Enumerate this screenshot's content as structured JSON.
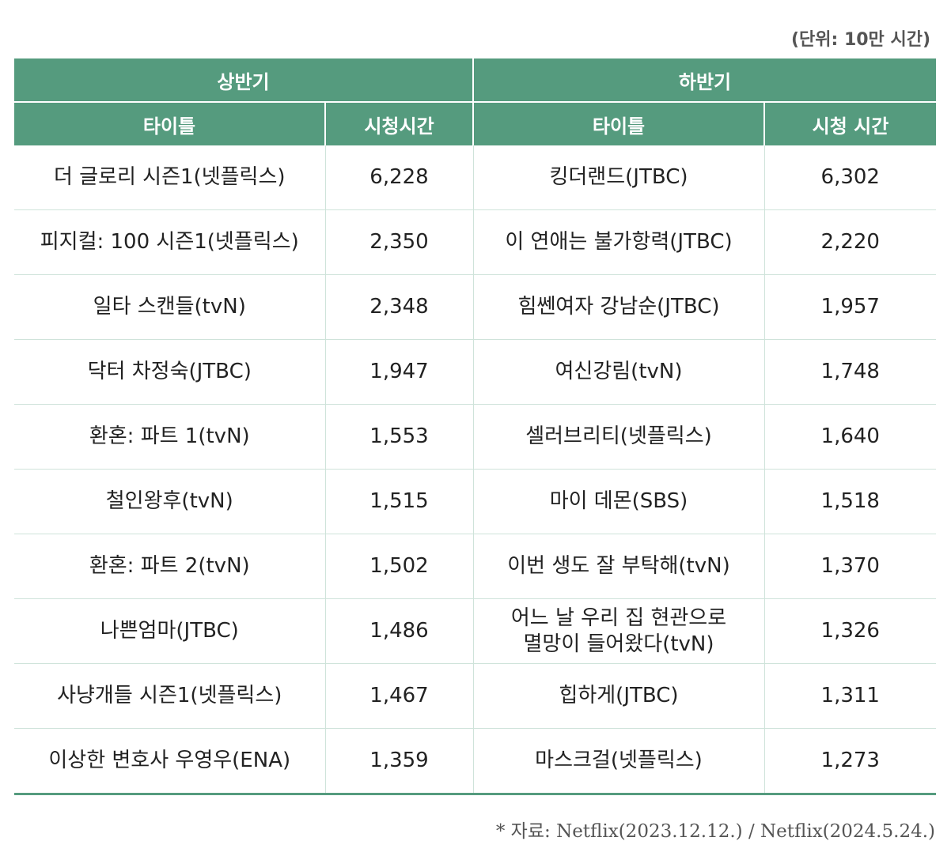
{
  "unit_note": "(단위: 10만 시간)",
  "headers": {
    "first_half": "상반기",
    "second_half": "하반기",
    "title_col_1": "타이틀",
    "hours_col_1": "시청시간",
    "title_col_2": "타이틀",
    "hours_col_2": "시청 시간"
  },
  "rows": [
    {
      "h1_title": "더 글로리 시즌1(넷플릭스)",
      "h1_hours": "6,228",
      "h2_title": "킹더랜드(JTBC)",
      "h2_hours": "6,302"
    },
    {
      "h1_title": "피지컬: 100 시즌1(넷플릭스)",
      "h1_hours": "2,350",
      "h2_title": "이 연애는 불가항력(JTBC)",
      "h2_hours": "2,220"
    },
    {
      "h1_title": "일타 스캔들(tvN)",
      "h1_hours": "2,348",
      "h2_title": "힘쎈여자 강남순(JTBC)",
      "h2_hours": "1,957"
    },
    {
      "h1_title": "닥터 차정숙(JTBC)",
      "h1_hours": "1,947",
      "h2_title": "여신강림(tvN)",
      "h2_hours": "1,748"
    },
    {
      "h1_title": "환혼: 파트 1(tvN)",
      "h1_hours": "1,553",
      "h2_title": "셀러브리티(넷플릭스)",
      "h2_hours": "1,640"
    },
    {
      "h1_title": "철인왕후(tvN)",
      "h1_hours": "1,515",
      "h2_title": "마이 데몬(SBS)",
      "h2_hours": "1,518"
    },
    {
      "h1_title": "환혼: 파트 2(tvN)",
      "h1_hours": "1,502",
      "h2_title": "이번 생도 잘 부탁해(tvN)",
      "h2_hours": "1,370"
    },
    {
      "h1_title": "나쁜엄마(JTBC)",
      "h1_hours": "1,486",
      "h2_title": "어느 날 우리 집 현관으로\n멸망이 들어왔다(tvN)",
      "h2_hours": "1,326"
    },
    {
      "h1_title": "사냥개들 시즌1(넷플릭스)",
      "h1_hours": "1,467",
      "h2_title": "힙하게(JTBC)",
      "h2_hours": "1,311"
    },
    {
      "h1_title": "이상한 변호사 우영우(ENA)",
      "h1_hours": "1,359",
      "h2_title": "마스크걸(넷플릭스)",
      "h2_hours": "1,273"
    }
  ],
  "source_note": "* 자료: Netflix(2023.12.12.) / Netflix(2024.5.24.)"
}
